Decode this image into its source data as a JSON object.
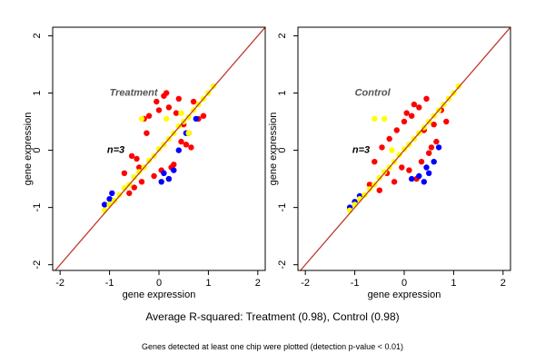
{
  "summary_text": "Average R-squared: Treatment (0.98), Control (0.98)",
  "footnote_text": "Genes detected at least one chip were plotted (detection p-value < 0.01)",
  "colors": {
    "background": "#ffffff",
    "frame": "#000000",
    "diagonal": "#c0392b",
    "series_red": "#ff0000",
    "series_blue": "#0000ff",
    "series_yellow": "#ffff00"
  },
  "chart_data": [
    {
      "type": "scatter",
      "title": "Treatment",
      "annotation": "n=3",
      "xlabel": "gene expression",
      "ylabel": "gene expression",
      "xlim": [
        -2.15,
        2.15
      ],
      "ylim": [
        -2.1,
        2.15
      ],
      "xticks": [
        "-2",
        "-1",
        "0",
        "1",
        "2"
      ],
      "yticks": [
        "-2",
        "-1",
        "0",
        "1",
        "2"
      ],
      "xtick_values": [
        -2,
        -1,
        0,
        1,
        2
      ],
      "ytick_values": [
        -2,
        -1,
        0,
        1,
        2
      ],
      "reference_line": "y = x",
      "series": [
        {
          "color": "red",
          "x": [
            -0.55,
            -0.45,
            -0.3,
            -0.2,
            -0.05,
            0.1,
            0.2,
            0.35,
            0.5,
            0.6,
            0.7,
            -0.35,
            -0.1,
            0.05,
            0.25,
            0.45,
            -0.6,
            -0.4,
            0.15,
            0.3,
            0.55,
            0.8,
            -0.25,
            0.4,
            0.65,
            -0.5,
            0.0,
            0.2,
            0.9,
            -0.7
          ],
          "y": [
            -0.1,
            -0.15,
            0.55,
            0.6,
            0.85,
            0.95,
            0.75,
            0.65,
            0.45,
            0.3,
            0.85,
            -0.55,
            -0.45,
            -0.35,
            -0.3,
            0.15,
            -0.75,
            -0.3,
            1.0,
            -0.25,
            0.1,
            0.55,
            0.3,
            0.9,
            0.05,
            -0.65,
            0.7,
            -0.5,
            0.6,
            -0.4
          ]
        },
        {
          "color": "blue",
          "x": [
            -1.0,
            -1.1,
            0.2,
            0.1,
            0.55,
            0.4,
            0.75,
            -0.95,
            0.05,
            0.3
          ],
          "y": [
            -0.85,
            -0.95,
            -0.5,
            -0.4,
            0.3,
            0.0,
            0.55,
            -0.75,
            -0.55,
            -0.35
          ]
        },
        {
          "color": "yellow",
          "x": [
            -1.1,
            -1.0,
            -0.9,
            -0.8,
            -0.7,
            -0.6,
            -0.5,
            -0.4,
            -0.3,
            -0.2,
            -0.1,
            0.0,
            0.1,
            0.2,
            0.3,
            0.4,
            0.5,
            0.6,
            0.7,
            0.8,
            0.9,
            1.0,
            1.1,
            -0.35,
            0.15,
            0.45,
            0.6
          ],
          "y": [
            -1.05,
            -0.95,
            -0.88,
            -0.78,
            -0.66,
            -0.6,
            -0.47,
            -0.38,
            -0.3,
            -0.18,
            -0.1,
            0.02,
            0.1,
            0.2,
            0.3,
            0.42,
            0.5,
            0.58,
            0.7,
            0.8,
            0.9,
            1.0,
            1.12,
            0.55,
            0.55,
            0.65,
            0.3
          ]
        }
      ]
    },
    {
      "type": "scatter",
      "title": "Control",
      "annotation": "n=3",
      "xlabel": "gene expression",
      "ylabel": "gene expression",
      "xlim": [
        -2.15,
        2.15
      ],
      "ylim": [
        -2.1,
        2.15
      ],
      "xticks": [
        "-2",
        "-1",
        "0",
        "1",
        "2"
      ],
      "yticks": [
        "-2",
        "-1",
        "0",
        "1",
        "2"
      ],
      "xtick_values": [
        -2,
        -1,
        0,
        1,
        2
      ],
      "ytick_values": [
        -2,
        -1,
        0,
        1,
        2
      ],
      "reference_line": "y = x",
      "series": [
        {
          "color": "red",
          "x": [
            -0.6,
            -0.45,
            -0.3,
            -0.15,
            0.0,
            0.15,
            0.3,
            0.45,
            0.6,
            0.75,
            -0.5,
            -0.2,
            0.1,
            0.35,
            0.55,
            -0.35,
            0.05,
            0.25,
            0.65,
            0.85,
            -0.7,
            -0.05,
            0.4,
            0.2,
            0.5
          ],
          "y": [
            -0.2,
            0.05,
            0.2,
            0.35,
            0.5,
            0.6,
            0.75,
            0.9,
            0.45,
            0.7,
            -0.7,
            -0.55,
            -0.35,
            -0.2,
            0.05,
            -0.4,
            0.65,
            -0.5,
            0.15,
            0.5,
            -0.6,
            -0.3,
            0.35,
            0.8,
            -0.05
          ]
        },
        {
          "color": "blue",
          "x": [
            -1.0,
            -1.1,
            0.3,
            0.45,
            0.5,
            0.6,
            0.15,
            -0.9,
            0.4,
            0.7
          ],
          "y": [
            -0.9,
            -1.0,
            -0.45,
            -0.3,
            -0.4,
            -0.2,
            -0.5,
            -0.8,
            -0.55,
            0.05
          ]
        },
        {
          "color": "yellow",
          "x": [
            -1.1,
            -1.0,
            -0.9,
            -0.8,
            -0.7,
            -0.6,
            -0.5,
            -0.4,
            -0.3,
            -0.2,
            -0.1,
            0.0,
            0.1,
            0.2,
            0.3,
            0.4,
            0.5,
            0.6,
            0.7,
            0.8,
            0.9,
            1.0,
            1.1,
            -0.6,
            -0.4,
            -0.25
          ],
          "y": [
            -1.05,
            -0.95,
            -0.85,
            -0.78,
            -0.68,
            -0.6,
            -0.48,
            -0.38,
            -0.3,
            -0.2,
            -0.08,
            0.02,
            0.1,
            0.2,
            0.3,
            0.4,
            0.5,
            0.6,
            0.7,
            0.8,
            0.9,
            1.0,
            1.12,
            0.55,
            0.55,
            0.0
          ]
        }
      ]
    }
  ]
}
